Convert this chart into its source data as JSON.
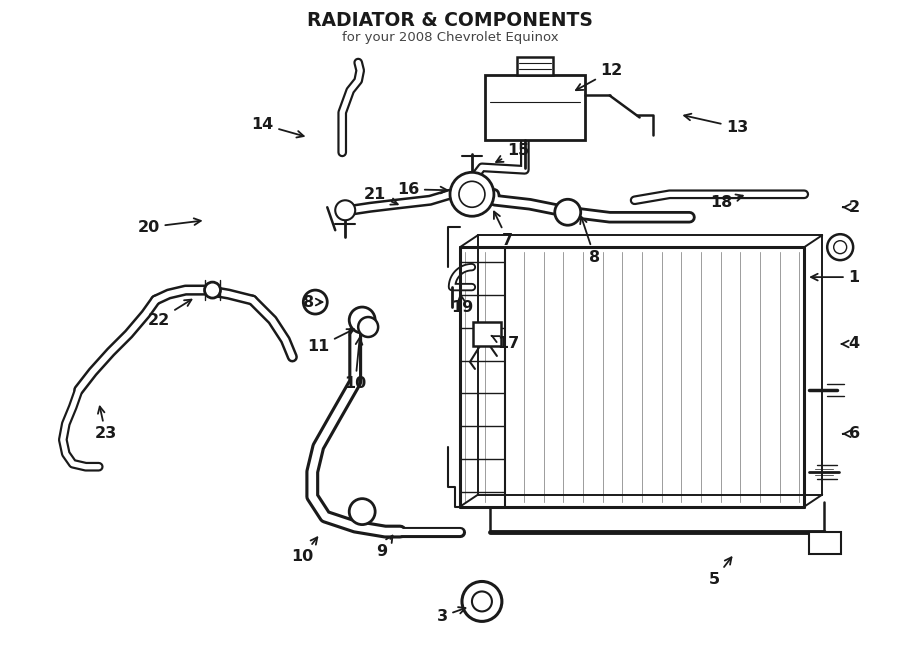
{
  "title": "RADIATOR & COMPONENTS",
  "subtitle": "for your 2008 Chevrolet Equinox",
  "bg_color": "#ffffff",
  "line_color": "#1a1a1a",
  "fig_width": 9.0,
  "fig_height": 6.62,
  "dpi": 100
}
